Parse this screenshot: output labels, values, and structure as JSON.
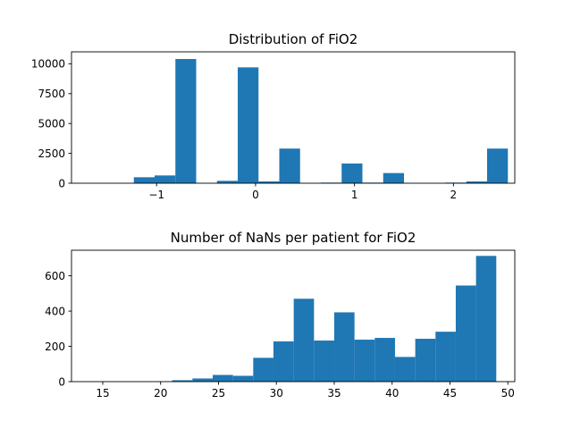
{
  "colors": {
    "bar": "#1f77b4"
  },
  "chart_data": [
    {
      "type": "bar",
      "title": "Distribution of FiO2",
      "xlabel": "",
      "ylabel": "",
      "xlim": [
        -1.86,
        2.62
      ],
      "ylim": [
        0,
        11000
      ],
      "xticks": [
        -1,
        0,
        1,
        2
      ],
      "xtick_labels": [
        "−1",
        "0",
        "1",
        "2"
      ],
      "yticks": [
        0,
        2500,
        5000,
        7500,
        10000
      ],
      "ytick_labels": [
        "0",
        "2500",
        "5000",
        "7500",
        "10000"
      ],
      "bin_edges": [
        -1.65,
        -1.44,
        -1.23,
        -1.02,
        -0.81,
        -0.6,
        -0.39,
        -0.18,
        0.03,
        0.24,
        0.45,
        0.66,
        0.87,
        1.08,
        1.29,
        1.5,
        1.71,
        1.92,
        2.13,
        2.34,
        2.55
      ],
      "values": [
        0,
        0,
        500,
        650,
        10400,
        0,
        200,
        9700,
        150,
        2900,
        0,
        50,
        1650,
        50,
        850,
        0,
        0,
        50,
        150,
        2900
      ]
    },
    {
      "type": "bar",
      "title": "Number of NaNs per patient for FiO2",
      "xlabel": "",
      "ylabel": "",
      "xlim": [
        12.3,
        50.6
      ],
      "ylim": [
        0,
        745
      ],
      "xticks": [
        15,
        20,
        25,
        30,
        35,
        40,
        45,
        50
      ],
      "xtick_labels": [
        "15",
        "20",
        "25",
        "30",
        "35",
        "40",
        "45",
        "50"
      ],
      "yticks": [
        0,
        200,
        400,
        600
      ],
      "ytick_labels": [
        "0",
        "200",
        "400",
        "600"
      ],
      "bin_edges": [
        14.0,
        15.75,
        17.5,
        19.25,
        21.0,
        22.75,
        24.5,
        26.25,
        28.0,
        29.75,
        31.5,
        33.25,
        35.0,
        36.75,
        38.5,
        40.25,
        42.0,
        43.75,
        45.5,
        47.25,
        49.0
      ],
      "values": [
        0,
        0,
        0,
        0,
        8,
        18,
        38,
        33,
        135,
        228,
        470,
        233,
        393,
        238,
        248,
        140,
        243,
        283,
        545,
        713
      ]
    }
  ]
}
